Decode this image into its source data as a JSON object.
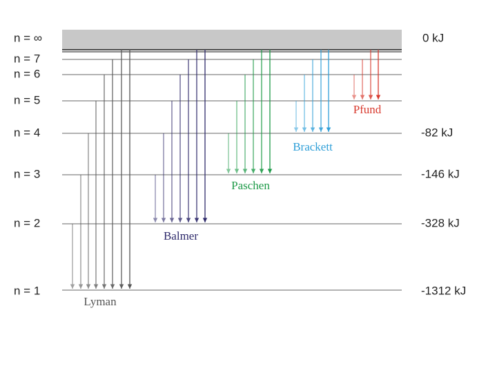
{
  "levels": [
    {
      "label": "n = ∞",
      "energy": "0 kJ"
    },
    {
      "label": "n = 7"
    },
    {
      "label": "n = 6"
    },
    {
      "label": "n = 5"
    },
    {
      "label": "n = 4",
      "energy": "-82 kJ"
    },
    {
      "label": "n = 3",
      "energy": "-146 kJ"
    },
    {
      "label": "n = 2",
      "energy": "-328 kJ"
    },
    {
      "label": "n = 1",
      "energy": "-1312 kJ"
    }
  ],
  "series": [
    {
      "name": "Lyman",
      "color": "#555555"
    },
    {
      "name": "Balmer",
      "color": "#2e2a6b"
    },
    {
      "name": "Paschen",
      "color": "#1e9a48"
    },
    {
      "name": "Brackett",
      "color": "#2f9fd8"
    },
    {
      "name": "Pfund",
      "color": "#d83a2e"
    }
  ]
}
